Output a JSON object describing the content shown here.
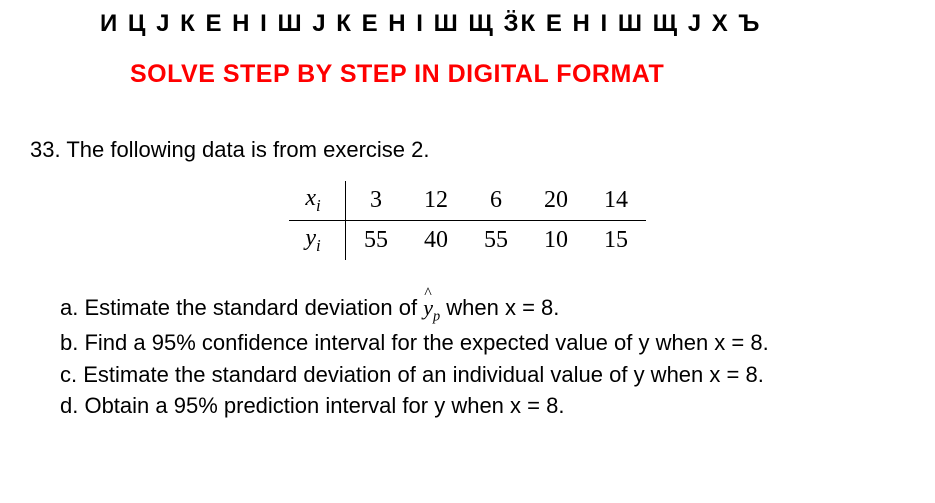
{
  "top_garble": "И Ц Ј К Е Н І  Ш Ј К Е Н І  Ш Щ ӞК Е Н І  Ш Щ Ј Х Ъ",
  "heading": "SOLVE STEP BY STEP IN DIGITAL FORMAT",
  "question_number": "33.",
  "question_text": "The following data is from exercise 2.",
  "table": {
    "row1_head": "x",
    "row1_sub": "i",
    "row1_vals": [
      "3",
      "12",
      "6",
      "20",
      "14"
    ],
    "row2_head": "y",
    "row2_sub": "i",
    "row2_vals": [
      "55",
      "40",
      "55",
      "10",
      "15"
    ]
  },
  "parts": {
    "a_pre": "a. Estimate the standard deviation of  ",
    "a_hat": "^",
    "a_y": "y",
    "a_p": "p",
    "a_post": "  when x = 8.",
    "b": "b. Find a 95% confidence interval for the expected value of y when x = 8.",
    "c": "c. Estimate the standard deviation of an individual value of y when x = 8.",
    "d": "d. Obtain a 95% prediction interval for y when x = 8."
  },
  "style": {
    "heading_color": "#ff0000",
    "text_color": "#000000",
    "background": "#ffffff",
    "body_fontsize": 22,
    "heading_fontsize": 25,
    "table_fontsize": 24
  }
}
